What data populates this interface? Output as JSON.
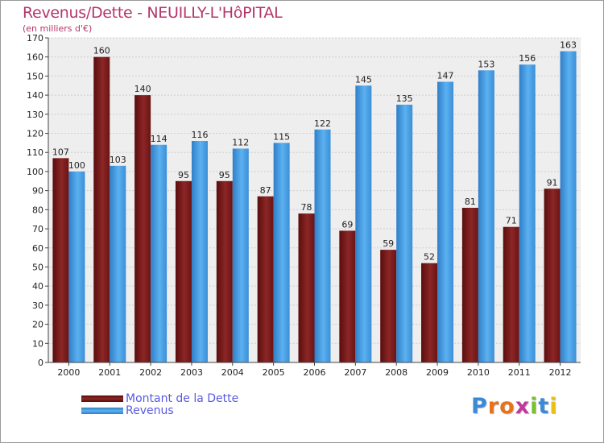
{
  "title": "Revenus/Dette - NEUILLY-L'HôPITAL",
  "subtitle": "(en milliers d'€)",
  "colors": {
    "debt": "#7a1a1a",
    "revenue": "#4aa3e8",
    "background": "#eeeeee",
    "grid": "#cfcfcf",
    "title": "#b4366a",
    "legend_text": "#5a5ae0"
  },
  "chart_data": {
    "type": "bar",
    "categories": [
      "2000",
      "2001",
      "2002",
      "2003",
      "2004",
      "2005",
      "2006",
      "2007",
      "2008",
      "2009",
      "2010",
      "2011",
      "2012"
    ],
    "series": [
      {
        "name": "Montant de la Dette",
        "values": [
          107,
          160,
          140,
          95,
          95,
          87,
          78,
          69,
          59,
          52,
          81,
          71,
          91
        ]
      },
      {
        "name": "Revenus",
        "values": [
          100,
          103,
          114,
          116,
          112,
          115,
          122,
          145,
          135,
          147,
          153,
          156,
          163
        ]
      }
    ],
    "title": "Revenus/Dette - NEUILLY-L'HôPITAL",
    "subtitle": "(en milliers d'€)",
    "ylim": [
      0,
      170
    ],
    "yticks": [
      0,
      10,
      20,
      30,
      40,
      50,
      60,
      70,
      80,
      90,
      100,
      110,
      120,
      130,
      140,
      150,
      160,
      170
    ],
    "grid": true,
    "legend_position": "bottom-left"
  },
  "legend": {
    "items": [
      {
        "label": "Montant de la Dette",
        "color": "#7a1a1a"
      },
      {
        "label": "Revenus",
        "color": "#4aa3e8"
      }
    ]
  },
  "logo": {
    "text": "Proxiti",
    "letter_colors": [
      "#3a8ad8",
      "#e8721a",
      "#e8721a",
      "#c03a9a",
      "#7cc032",
      "#3a8ad8",
      "#e8c01a"
    ]
  }
}
